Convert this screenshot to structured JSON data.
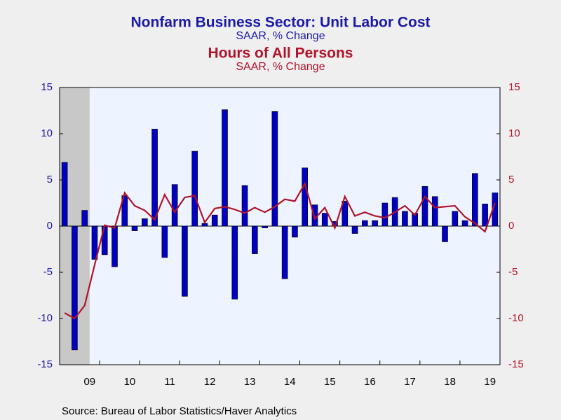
{
  "chart_data": {
    "type": "bar_line",
    "title": "Nonfarm Business Sector: Unit Labor Cost",
    "subtitle": "SAAR, % Change",
    "title2": "Hours of All Persons",
    "subtitle2": "SAAR, % Change",
    "source": "Source:  Bureau of Labor Statistics/Haver Analytics",
    "categories": [
      null,
      null,
      "09",
      null,
      null,
      null,
      "10",
      null,
      null,
      null,
      "11",
      null,
      null,
      null,
      "12",
      null,
      null,
      null,
      "13",
      null,
      null,
      null,
      "14",
      null,
      null,
      null,
      "15",
      null,
      null,
      null,
      "16",
      null,
      null,
      null,
      "17",
      null,
      null,
      null,
      "18",
      null,
      null,
      null,
      "19",
      null
    ],
    "shaded_categories": [
      0,
      1,
      2
    ],
    "series": [
      {
        "name": "Nonfarm Business Sector: Unit Labor Cost",
        "color": "#0000c0",
        "kind": "bar",
        "values": [
          6.9,
          -13.4,
          1.7,
          -3.6,
          -3.1,
          -4.4,
          3.3,
          -0.5,
          0.8,
          10.5,
          -3.4,
          4.5,
          -7.6,
          8.1,
          0.3,
          1.2,
          12.6,
          -7.9,
          4.4,
          -3.0,
          -0.2,
          12.4,
          -5.7,
          -1.2,
          6.3,
          2.3,
          1.4,
          0.5,
          2.7,
          -0.8,
          0.6,
          0.6,
          2.5,
          3.1,
          1.6,
          1.4,
          4.3,
          3.2,
          -1.7,
          1.6,
          0.6,
          5.7,
          2.4,
          3.6
        ]
      },
      {
        "name": "Hours of All Persons",
        "color": "#b0142a",
        "kind": "line",
        "axis": "y2",
        "values": [
          -9.4,
          -10.0,
          -8.6,
          -4.2,
          0.1,
          -0.2,
          3.6,
          2.2,
          1.7,
          0.7,
          3.4,
          1.5,
          3.1,
          3.3,
          0.4,
          1.9,
          2.1,
          1.8,
          1.4,
          2.0,
          1.5,
          2.1,
          2.9,
          2.7,
          4.6,
          0.8,
          2.0,
          -0.2,
          3.2,
          1.1,
          1.5,
          1.1,
          0.9,
          1.5,
          2.2,
          1.2,
          3.2,
          2.0,
          2.1,
          2.2,
          1.0,
          0.3,
          -0.6,
          2.5
        ]
      }
    ],
    "ylim": [
      -15,
      15
    ],
    "yticks": [
      15,
      10,
      5,
      0,
      -5,
      -10,
      -15
    ],
    "y2lim": [
      -15,
      15
    ],
    "y2ticks": [
      15,
      10,
      5,
      0,
      -5,
      -10,
      -15
    ]
  }
}
